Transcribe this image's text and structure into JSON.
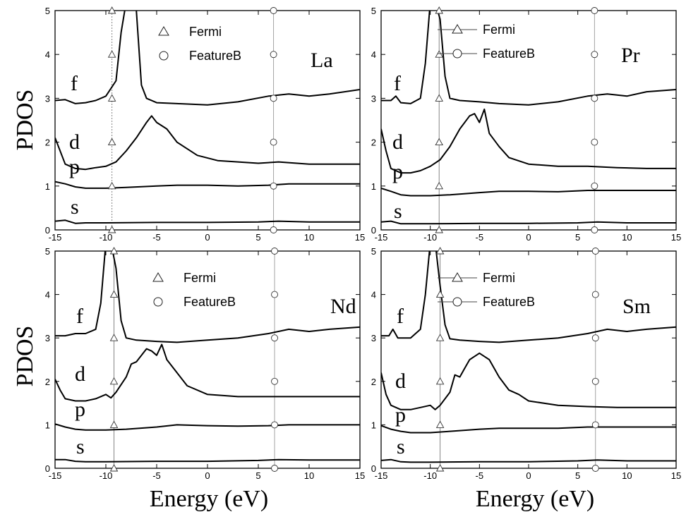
{
  "figure": {
    "ylabel": "PDOS",
    "xlabel": "Energy (eV)"
  },
  "chart_data": [
    {
      "type": "line",
      "panel_label": "La",
      "xlim": [
        -15,
        15
      ],
      "ylim": [
        0,
        5
      ],
      "xticks": [
        -15,
        -10,
        -5,
        0,
        5,
        10,
        15
      ],
      "yticks": [
        0,
        1,
        2,
        3,
        4,
        5
      ],
      "legend": {
        "position": "top-center",
        "entries": [
          "Fermi",
          "FeatureB"
        ]
      },
      "curve_labels": [
        "f",
        "d",
        "p",
        "s"
      ],
      "markers": {
        "fermi_x": -9.4,
        "fermi_y": [
          0,
          1,
          2,
          3,
          4,
          5
        ],
        "featureB_x": 6.5,
        "featureB_y": [
          0,
          1,
          2,
          3,
          4,
          5
        ]
      },
      "series": [
        {
          "name": "f",
          "x": [
            -15,
            -14,
            -13,
            -12,
            -11,
            -10,
            -9,
            -8.5,
            -8,
            -7.5,
            -7,
            -6.5,
            -6,
            -5,
            -3,
            0,
            3,
            6,
            8,
            10,
            12,
            15
          ],
          "y": [
            2.95,
            2.97,
            2.88,
            2.9,
            2.95,
            3.05,
            3.4,
            4.5,
            5.2,
            5.2,
            5.0,
            3.3,
            3.0,
            2.9,
            2.88,
            2.85,
            2.92,
            3.05,
            3.1,
            3.05,
            3.1,
            3.2
          ]
        },
        {
          "name": "d",
          "x": [
            -15,
            -14.5,
            -14,
            -13,
            -12,
            -11,
            -10,
            -9,
            -8,
            -7,
            -6,
            -5.5,
            -5,
            -4,
            -3,
            -1,
            1,
            3,
            5,
            7,
            10,
            12,
            15
          ],
          "y": [
            2.1,
            1.8,
            1.5,
            1.4,
            1.38,
            1.42,
            1.45,
            1.55,
            1.8,
            2.1,
            2.45,
            2.6,
            2.45,
            2.3,
            2.0,
            1.7,
            1.58,
            1.55,
            1.52,
            1.55,
            1.5,
            1.5,
            1.5
          ]
        },
        {
          "name": "p",
          "x": [
            -15,
            -14,
            -13,
            -12,
            -10,
            -8,
            -5,
            -3,
            0,
            3,
            6,
            8,
            10,
            12,
            15
          ],
          "y": [
            1.1,
            1.05,
            0.98,
            0.95,
            0.95,
            0.97,
            1.0,
            1.02,
            1.02,
            1.0,
            1.02,
            1.05,
            1.05,
            1.05,
            1.05
          ]
        },
        {
          "name": "s",
          "x": [
            -15,
            -14,
            -13,
            -12,
            -10,
            -5,
            0,
            5,
            7,
            10,
            15
          ],
          "y": [
            0.2,
            0.22,
            0.15,
            0.16,
            0.16,
            0.17,
            0.17,
            0.18,
            0.2,
            0.18,
            0.18
          ]
        }
      ]
    },
    {
      "type": "line",
      "panel_label": "Pr",
      "xlim": [
        -15,
        15
      ],
      "ylim": [
        0,
        5
      ],
      "xticks": [
        -15,
        -10,
        -5,
        0,
        5,
        10,
        15
      ],
      "yticks": [
        0,
        1,
        2,
        3,
        4,
        5
      ],
      "legend": {
        "position": "top-center",
        "entries": [
          "Fermi",
          "FeatureB"
        ]
      },
      "curve_labels": [
        "f",
        "d",
        "p",
        "s"
      ],
      "markers": {
        "fermi_x": -9.1,
        "fermi_y": [
          0,
          1,
          2,
          3,
          4,
          5
        ],
        "featureB_x": 6.7,
        "featureB_y": [
          0,
          1,
          2,
          3,
          4,
          5
        ]
      },
      "series": [
        {
          "name": "f",
          "x": [
            -15,
            -14,
            -13.5,
            -13,
            -12,
            -11,
            -10.5,
            -10,
            -9.5,
            -9,
            -8.5,
            -8,
            -7,
            -5,
            -3,
            0,
            3,
            6,
            8,
            10,
            12,
            15
          ],
          "y": [
            2.95,
            2.95,
            3.05,
            2.9,
            2.88,
            3.0,
            3.8,
            5.2,
            5.2,
            4.8,
            3.5,
            3.0,
            2.95,
            2.92,
            2.88,
            2.85,
            2.92,
            3.05,
            3.1,
            3.05,
            3.15,
            3.2
          ]
        },
        {
          "name": "d",
          "x": [
            -15,
            -14.5,
            -14,
            -13,
            -12,
            -11,
            -10,
            -9,
            -8,
            -7,
            -6,
            -5.5,
            -5,
            -4.5,
            -4,
            -3,
            -2,
            0,
            3,
            6,
            9,
            12,
            15
          ],
          "y": [
            2.3,
            1.8,
            1.4,
            1.3,
            1.3,
            1.35,
            1.45,
            1.6,
            1.9,
            2.3,
            2.6,
            2.65,
            2.45,
            2.75,
            2.2,
            1.9,
            1.65,
            1.5,
            1.45,
            1.45,
            1.42,
            1.4,
            1.4
          ]
        },
        {
          "name": "p",
          "x": [
            -15,
            -14,
            -13,
            -12,
            -10,
            -8,
            -5,
            -3,
            0,
            3,
            6,
            8,
            10,
            12,
            15
          ],
          "y": [
            0.95,
            0.88,
            0.8,
            0.78,
            0.78,
            0.8,
            0.85,
            0.88,
            0.88,
            0.87,
            0.9,
            0.9,
            0.9,
            0.9,
            0.9
          ]
        },
        {
          "name": "s",
          "x": [
            -15,
            -14,
            -13,
            -12,
            -10,
            -5,
            0,
            5,
            7,
            10,
            15
          ],
          "y": [
            0.18,
            0.2,
            0.14,
            0.14,
            0.14,
            0.15,
            0.15,
            0.16,
            0.18,
            0.16,
            0.16
          ]
        }
      ]
    },
    {
      "type": "line",
      "panel_label": "Nd",
      "xlim": [
        -15,
        15
      ],
      "ylim": [
        0,
        5
      ],
      "xticks": [
        -15,
        -10,
        -5,
        0,
        5,
        10,
        15
      ],
      "yticks": [
        0,
        1,
        2,
        3,
        4,
        5
      ],
      "legend": {
        "position": "top-center",
        "entries": [
          "Fermi",
          "FeatureB"
        ]
      },
      "curve_labels": [
        "f",
        "d",
        "p",
        "s"
      ],
      "markers": {
        "fermi_x": -9.2,
        "fermi_y": [
          0,
          1,
          2,
          3,
          4,
          5
        ],
        "featureB_x": 6.6,
        "featureB_y": [
          0,
          1,
          2,
          3,
          4,
          5
        ]
      },
      "series": [
        {
          "name": "f",
          "x": [
            -15,
            -14,
            -13,
            -12,
            -11,
            -10.5,
            -10,
            -9.5,
            -9,
            -8.5,
            -8,
            -7,
            -5,
            -3,
            0,
            3,
            6,
            8,
            10,
            12,
            15
          ],
          "y": [
            3.05,
            3.05,
            3.1,
            3.1,
            3.2,
            3.8,
            5.2,
            5.2,
            4.6,
            3.4,
            3.0,
            2.95,
            2.92,
            2.9,
            2.95,
            3.0,
            3.1,
            3.2,
            3.15,
            3.2,
            3.25
          ]
        },
        {
          "name": "d",
          "x": [
            -15,
            -14.5,
            -14,
            -13,
            -12,
            -11,
            -10,
            -9.5,
            -9,
            -8,
            -7.5,
            -7,
            -6,
            -5.5,
            -5,
            -4.5,
            -4,
            -3,
            -2,
            0,
            3,
            6,
            9,
            12,
            15
          ],
          "y": [
            2.05,
            1.8,
            1.6,
            1.55,
            1.55,
            1.6,
            1.7,
            1.62,
            1.75,
            2.1,
            2.4,
            2.45,
            2.75,
            2.7,
            2.6,
            2.85,
            2.5,
            2.2,
            1.9,
            1.7,
            1.65,
            1.65,
            1.65,
            1.65,
            1.65
          ]
        },
        {
          "name": "p",
          "x": [
            -15,
            -14,
            -13,
            -12,
            -10,
            -8,
            -5,
            -3,
            0,
            3,
            6,
            8,
            10,
            12,
            15
          ],
          "y": [
            1.02,
            0.95,
            0.9,
            0.88,
            0.88,
            0.9,
            0.95,
            1.0,
            0.98,
            0.97,
            0.98,
            1.0,
            1.0,
            1.0,
            1.0
          ]
        },
        {
          "name": "s",
          "x": [
            -15,
            -14,
            -13,
            -12,
            -10,
            -5,
            0,
            5,
            7,
            10,
            15
          ],
          "y": [
            0.2,
            0.2,
            0.16,
            0.15,
            0.15,
            0.16,
            0.16,
            0.18,
            0.2,
            0.19,
            0.19
          ]
        }
      ]
    },
    {
      "type": "line",
      "panel_label": "Sm",
      "xlim": [
        -15,
        15
      ],
      "ylim": [
        0,
        5
      ],
      "xticks": [
        -15,
        -10,
        -5,
        0,
        5,
        10,
        15
      ],
      "yticks": [
        0,
        1,
        2,
        3,
        4,
        5
      ],
      "legend": {
        "position": "top-center",
        "entries": [
          "Fermi",
          "FeatureB"
        ]
      },
      "curve_labels": [
        "f",
        "d",
        "p",
        "s"
      ],
      "markers": {
        "fermi_x": -9.0,
        "fermi_y": [
          0,
          1,
          2,
          3,
          4,
          5
        ],
        "featureB_x": 6.8,
        "featureB_y": [
          0,
          1,
          2,
          3,
          4,
          5
        ]
      },
      "series": [
        {
          "name": "f",
          "x": [
            -15,
            -14.2,
            -13.8,
            -13.3,
            -12,
            -11,
            -10.5,
            -10,
            -9.5,
            -9,
            -8.5,
            -8,
            -7,
            -5,
            -3,
            0,
            3,
            6,
            8,
            10,
            12,
            15
          ],
          "y": [
            3.05,
            3.05,
            3.2,
            3.0,
            3.0,
            3.2,
            4.0,
            5.2,
            5.2,
            4.2,
            3.3,
            2.98,
            2.95,
            2.92,
            2.9,
            2.95,
            3.0,
            3.1,
            3.2,
            3.15,
            3.2,
            3.25
          ]
        },
        {
          "name": "d",
          "x": [
            -15,
            -14.5,
            -14,
            -13,
            -12,
            -11,
            -10,
            -9.5,
            -9,
            -8,
            -7.5,
            -7,
            -6.5,
            -6,
            -5,
            -4,
            -3,
            -2,
            -1,
            0,
            3,
            6,
            9,
            12,
            15
          ],
          "y": [
            2.2,
            1.7,
            1.45,
            1.35,
            1.35,
            1.4,
            1.45,
            1.35,
            1.45,
            1.75,
            2.15,
            2.1,
            2.3,
            2.5,
            2.65,
            2.5,
            2.1,
            1.8,
            1.7,
            1.55,
            1.45,
            1.42,
            1.4,
            1.4,
            1.4
          ]
        },
        {
          "name": "p",
          "x": [
            -15,
            -14,
            -13,
            -12,
            -10,
            -8,
            -5,
            -3,
            0,
            3,
            6,
            8,
            10,
            12,
            15
          ],
          "y": [
            0.98,
            0.9,
            0.85,
            0.82,
            0.82,
            0.85,
            0.9,
            0.92,
            0.92,
            0.92,
            0.95,
            0.95,
            0.95,
            0.95,
            0.95
          ]
        },
        {
          "name": "s",
          "x": [
            -15,
            -14,
            -13,
            -12,
            -10,
            -5,
            0,
            5,
            7,
            10,
            15
          ],
          "y": [
            0.18,
            0.2,
            0.15,
            0.14,
            0.14,
            0.15,
            0.15,
            0.17,
            0.19,
            0.17,
            0.17
          ]
        }
      ]
    }
  ]
}
